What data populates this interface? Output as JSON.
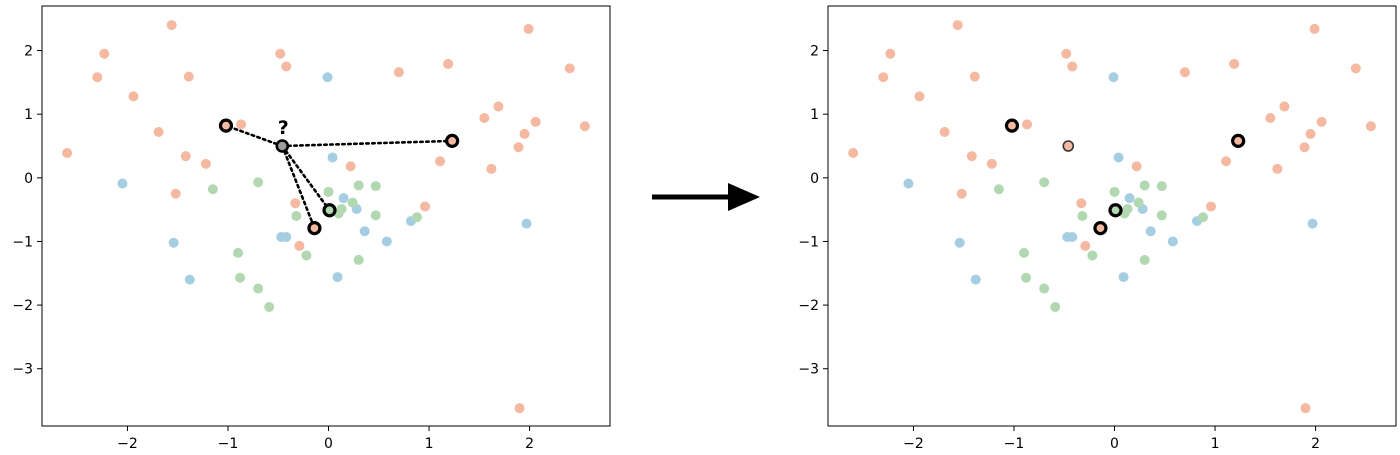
{
  "chart_data": [
    {
      "type": "scatter",
      "title": "",
      "xlabel": "",
      "ylabel": "",
      "xlim": [
        -2.85,
        2.8
      ],
      "ylim": [
        -3.9,
        2.7
      ],
      "grid": false,
      "x_ticks": [
        -2,
        -1,
        0,
        1,
        2
      ],
      "y_ticks": [
        2,
        1,
        0,
        -1,
        -2,
        -3
      ],
      "x_tick_labels": [
        "−2",
        "−1",
        "0",
        "1",
        "2"
      ],
      "y_tick_labels": [
        "2",
        "1",
        "0",
        "−1",
        "−2",
        "−3"
      ],
      "question_label": "?",
      "series": [
        {
          "color": "#f4b9a0",
          "points": [
            [
              -2.6,
              0.39
            ],
            [
              -2.3,
              1.58
            ],
            [
              -2.23,
              1.95
            ],
            [
              -1.94,
              1.28
            ],
            [
              -1.69,
              0.72
            ],
            [
              -1.56,
              2.4
            ],
            [
              -1.52,
              -0.25
            ],
            [
              -1.42,
              0.34
            ],
            [
              -1.39,
              1.59
            ],
            [
              -1.22,
              0.22
            ],
            [
              -0.87,
              0.84
            ],
            [
              -0.48,
              1.95
            ],
            [
              -0.42,
              1.75
            ],
            [
              -0.33,
              -0.4
            ],
            [
              -0.29,
              -1.07
            ],
            [
              0.22,
              0.18
            ],
            [
              0.7,
              1.66
            ],
            [
              0.96,
              -0.45
            ],
            [
              1.11,
              0.26
            ],
            [
              1.19,
              1.79
            ],
            [
              1.55,
              0.94
            ],
            [
              1.62,
              0.14
            ],
            [
              1.69,
              1.12
            ],
            [
              1.89,
              0.48
            ],
            [
              1.95,
              0.69
            ],
            [
              1.99,
              2.34
            ],
            [
              2.06,
              0.88
            ],
            [
              2.4,
              1.72
            ],
            [
              2.55,
              0.81
            ],
            [
              1.9,
              -3.62
            ]
          ]
        },
        {
          "color": "#a6cee3",
          "points": [
            [
              -2.05,
              -0.09
            ],
            [
              -1.54,
              -1.02
            ],
            [
              -1.38,
              -1.6
            ],
            [
              -0.47,
              -0.93
            ],
            [
              -0.42,
              -0.93
            ],
            [
              -0.01,
              1.58
            ],
            [
              0.04,
              0.32
            ],
            [
              0.09,
              -1.56
            ],
            [
              0.15,
              -0.32
            ],
            [
              0.28,
              -0.49
            ],
            [
              0.36,
              -0.84
            ],
            [
              0.58,
              -1.0
            ],
            [
              0.82,
              -0.68
            ],
            [
              1.97,
              -0.72
            ]
          ]
        },
        {
          "color": "#b2d8b2",
          "points": [
            [
              -1.15,
              -0.18
            ],
            [
              -0.9,
              -1.18
            ],
            [
              -0.88,
              -1.57
            ],
            [
              -0.7,
              -0.07
            ],
            [
              -0.7,
              -1.74
            ],
            [
              -0.59,
              -2.03
            ],
            [
              -0.32,
              -0.6
            ],
            [
              -0.22,
              -1.22
            ],
            [
              0.0,
              -0.22
            ],
            [
              0.1,
              -0.56
            ],
            [
              0.13,
              -0.49
            ],
            [
              0.24,
              -0.39
            ],
            [
              0.3,
              -0.12
            ],
            [
              0.3,
              -1.29
            ],
            [
              0.47,
              -0.13
            ],
            [
              0.47,
              -0.59
            ],
            [
              0.88,
              -0.62
            ]
          ]
        }
      ],
      "query_point": [
        -0.46,
        0.5
      ],
      "neighbors": [
        [
          -1.02,
          0.82
        ],
        [
          1.23,
          0.58
        ],
        [
          -0.14,
          -0.79
        ],
        [
          0.01,
          -0.51
        ]
      ]
    },
    {
      "type": "scatter",
      "title": "",
      "xlabel": "",
      "ylabel": "",
      "xlim": [
        -2.85,
        2.8
      ],
      "ylim": [
        -3.9,
        2.7
      ],
      "grid": false,
      "x_ticks": [
        -2,
        -1,
        0,
        1,
        2
      ],
      "y_ticks": [
        2,
        1,
        0,
        -1,
        -2,
        -3
      ],
      "x_tick_labels": [
        "−2",
        "−1",
        "0",
        "1",
        "2"
      ],
      "y_tick_labels": [
        "2",
        "1",
        "0",
        "−1",
        "−2",
        "−3"
      ],
      "series": [
        {
          "color": "#f4b9a0",
          "points": [
            [
              -2.6,
              0.39
            ],
            [
              -2.3,
              1.58
            ],
            [
              -2.23,
              1.95
            ],
            [
              -1.94,
              1.28
            ],
            [
              -1.69,
              0.72
            ],
            [
              -1.56,
              2.4
            ],
            [
              -1.52,
              -0.25
            ],
            [
              -1.42,
              0.34
            ],
            [
              -1.39,
              1.59
            ],
            [
              -1.22,
              0.22
            ],
            [
              -0.87,
              0.84
            ],
            [
              -0.48,
              1.95
            ],
            [
              -0.42,
              1.75
            ],
            [
              -0.33,
              -0.4
            ],
            [
              -0.29,
              -1.07
            ],
            [
              0.22,
              0.18
            ],
            [
              0.7,
              1.66
            ],
            [
              0.96,
              -0.45
            ],
            [
              1.11,
              0.26
            ],
            [
              1.19,
              1.79
            ],
            [
              1.55,
              0.94
            ],
            [
              1.62,
              0.14
            ],
            [
              1.69,
              1.12
            ],
            [
              1.89,
              0.48
            ],
            [
              1.95,
              0.69
            ],
            [
              1.99,
              2.34
            ],
            [
              2.06,
              0.88
            ],
            [
              2.4,
              1.72
            ],
            [
              2.55,
              0.81
            ],
            [
              1.9,
              -3.62
            ]
          ]
        },
        {
          "color": "#a6cee3",
          "points": [
            [
              -2.05,
              -0.09
            ],
            [
              -1.54,
              -1.02
            ],
            [
              -1.38,
              -1.6
            ],
            [
              -0.47,
              -0.93
            ],
            [
              -0.42,
              -0.93
            ],
            [
              -0.01,
              1.58
            ],
            [
              0.04,
              0.32
            ],
            [
              0.09,
              -1.56
            ],
            [
              0.15,
              -0.32
            ],
            [
              0.28,
              -0.49
            ],
            [
              0.36,
              -0.84
            ],
            [
              0.58,
              -1.0
            ],
            [
              0.82,
              -0.68
            ],
            [
              1.97,
              -0.72
            ]
          ]
        },
        {
          "color": "#b2d8b2",
          "points": [
            [
              -1.15,
              -0.18
            ],
            [
              -0.9,
              -1.18
            ],
            [
              -0.88,
              -1.57
            ],
            [
              -0.7,
              -0.07
            ],
            [
              -0.7,
              -1.74
            ],
            [
              -0.59,
              -2.03
            ],
            [
              -0.32,
              -0.6
            ],
            [
              -0.22,
              -1.22
            ],
            [
              0.0,
              -0.22
            ],
            [
              0.1,
              -0.56
            ],
            [
              0.13,
              -0.49
            ],
            [
              0.24,
              -0.39
            ],
            [
              0.3,
              -0.12
            ],
            [
              0.3,
              -1.29
            ],
            [
              0.47,
              -0.13
            ],
            [
              0.47,
              -0.59
            ],
            [
              0.88,
              -0.62
            ]
          ]
        }
      ],
      "query_point": [
        -0.46,
        0.5
      ],
      "query_color": "#f4b9a0",
      "neighbors": [
        [
          -1.02,
          0.82
        ],
        [
          1.23,
          0.58
        ],
        [
          -0.14,
          -0.79
        ],
        [
          0.01,
          -0.51
        ]
      ]
    }
  ],
  "arrow": {
    "color": "#000000"
  }
}
